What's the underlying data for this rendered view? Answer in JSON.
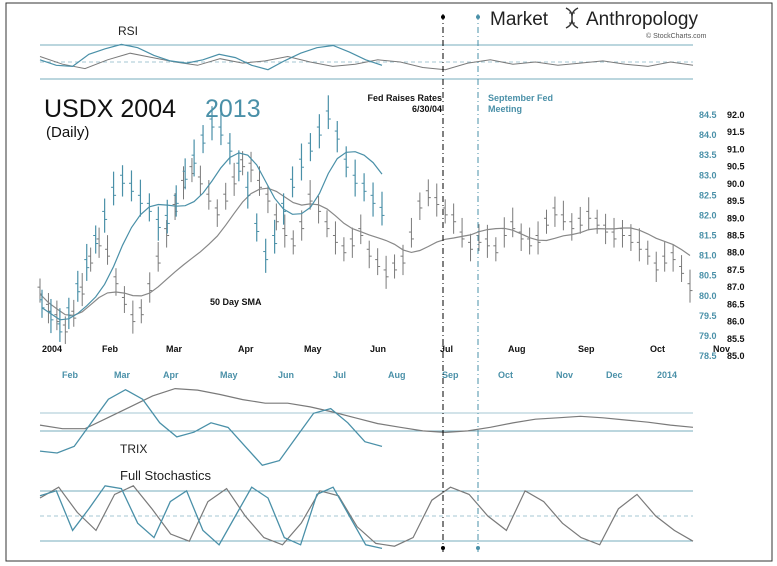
{
  "brand": {
    "word1": "Market",
    "word2": "Anthropology",
    "credit": "© StockCharts.com",
    "logo_icon": "dna-helix-icon"
  },
  "colors": {
    "series_2004": "#7a7a7a",
    "series_2013": "#4a90a8",
    "sma_2004": "#888888",
    "sma_2013": "#4a90a8",
    "frame": "#333333",
    "gridline": "#4a90a8",
    "title_2013": "#4a90a8",
    "fed_raise_line": "#000000",
    "fed_meeting_line": "#4a90a8"
  },
  "chart_data": {
    "type": "line",
    "title_a": "USDX 2004",
    "title_b": "2013",
    "subtitle": "(Daily)",
    "annotations": [
      {
        "name": "fed_raise",
        "line1": "Fed Raises Rates",
        "line2": "6/30/04"
      },
      {
        "name": "fed_meeting",
        "line1": "September Fed",
        "line2": "Meeting"
      }
    ],
    "sma_label": "50 Day SMA",
    "axis_2004": {
      "ticks": [
        "92.0",
        "91.5",
        "91.0",
        "90.5",
        "90.0",
        "89.5",
        "89.0",
        "88.5",
        "88.0",
        "87.5",
        "87.0",
        "86.5",
        "86.0",
        "85.5",
        "85.0"
      ],
      "range": [
        85.0,
        92.0
      ]
    },
    "axis_2013": {
      "ticks": [
        "84.5",
        "84.0",
        "83.5",
        "83.0",
        "82.5",
        "82.0",
        "81.5",
        "81.0",
        "80.5",
        "80.0",
        "79.5",
        "79.0",
        "78.5"
      ],
      "range": [
        78.5,
        84.5
      ]
    },
    "months_2004": [
      "2004",
      "Feb",
      "Mar",
      "Apr",
      "May",
      "Jun",
      "Jul",
      "Aug",
      "Sep",
      "Oct",
      "Nov"
    ],
    "months_2013": [
      "Feb",
      "Mar",
      "Apr",
      "May",
      "Jun",
      "Jul",
      "Aug",
      "Sep",
      "Oct",
      "Nov",
      "Dec",
      "2014"
    ],
    "series": [
      {
        "name": "USDX 2004",
        "values": [
          86.9,
          86.4,
          86.1,
          85.8,
          86.2,
          86.9,
          87.8,
          88.3,
          88.0,
          87.2,
          86.6,
          86.1,
          86.3,
          87.0,
          87.8,
          88.6,
          89.3,
          90.0,
          90.4,
          90.1,
          89.6,
          89.2,
          89.6,
          90.1,
          90.6,
          90.5,
          90.0,
          89.6,
          89.0,
          88.6,
          88.3,
          88.8,
          89.6,
          89.3,
          88.8,
          88.4,
          88.1,
          88.3,
          88.6,
          88.0,
          87.7,
          87.4,
          87.6,
          87.8,
          88.5,
          89.4,
          89.7,
          89.5,
          89.2,
          89.0,
          88.5,
          88.2,
          88.4,
          88.3,
          88.1,
          88.6,
          88.8,
          88.5,
          88.3,
          88.4,
          88.9,
          89.2,
          89.0,
          88.8,
          88.9,
          89.1,
          88.9,
          88.7,
          88.5,
          88.6,
          88.4,
          88.2,
          88.0,
          87.6,
          87.8,
          87.9,
          87.5,
          87.0
        ]
      },
      {
        "name": "USDX 2013",
        "values": [
          79.8,
          79.5,
          79.2,
          79.6,
          80.2,
          80.8,
          81.4,
          82.0,
          82.6,
          82.9,
          82.7,
          82.4,
          82.2,
          81.8,
          81.9,
          82.4,
          83.0,
          83.4,
          83.9,
          84.3,
          84.1,
          83.7,
          83.2,
          82.6,
          81.7,
          81.0,
          81.4,
          82.2,
          82.8,
          83.3,
          83.7,
          84.1,
          84.5,
          84.0,
          83.3,
          82.9,
          82.7,
          82.4,
          82.1
        ]
      }
    ],
    "indicators": {
      "rsi_label": "RSI",
      "trix_label": "TRIX",
      "stoch_label": "Full Stochastics",
      "rsi_2004": [
        55,
        48,
        44,
        52,
        58,
        54,
        50,
        47,
        53,
        49,
        51,
        55,
        50,
        46,
        48,
        52,
        50,
        45,
        43,
        49,
        52,
        48,
        50,
        47,
        49,
        51,
        48,
        46,
        50,
        47
      ],
      "rsi_2013": [
        52,
        47,
        46,
        57,
        62,
        66,
        63,
        56,
        51,
        49,
        52,
        57,
        54,
        47,
        43,
        51,
        58,
        63,
        65,
        59,
        52,
        47
      ],
      "trix_2004": [
        0.0,
        -0.05,
        -0.05,
        0.1,
        0.25,
        0.4,
        0.5,
        0.48,
        0.42,
        0.35,
        0.3,
        0.3,
        0.25,
        0.18,
        0.1,
        0.02,
        -0.03,
        -0.08,
        -0.1,
        -0.08,
        -0.03,
        0.03,
        0.08,
        0.1,
        0.12,
        0.1,
        0.07,
        0.04,
        0.0,
        -0.03
      ],
      "trix_2013": [
        -0.1,
        -0.12,
        -0.05,
        0.2,
        0.45,
        0.55,
        0.45,
        0.2,
        0.05,
        0.1,
        0.2,
        0.15,
        -0.05,
        -0.25,
        -0.2,
        0.05,
        0.3,
        0.35,
        0.2,
        0.0,
        -0.05
      ],
      "stoch_2004": [
        75,
        90,
        55,
        30,
        80,
        92,
        60,
        25,
        15,
        70,
        88,
        50,
        20,
        10,
        40,
        85,
        78,
        35,
        12,
        8,
        20,
        72,
        90,
        80,
        50,
        30,
        85,
        70,
        40,
        20,
        10,
        60,
        80,
        50,
        30,
        15
      ],
      "stoch_2013": [
        78,
        85,
        30,
        60,
        92,
        88,
        40,
        20,
        70,
        85,
        30,
        10,
        50,
        90,
        75,
        20,
        10,
        80,
        90,
        50,
        10,
        5
      ]
    }
  }
}
